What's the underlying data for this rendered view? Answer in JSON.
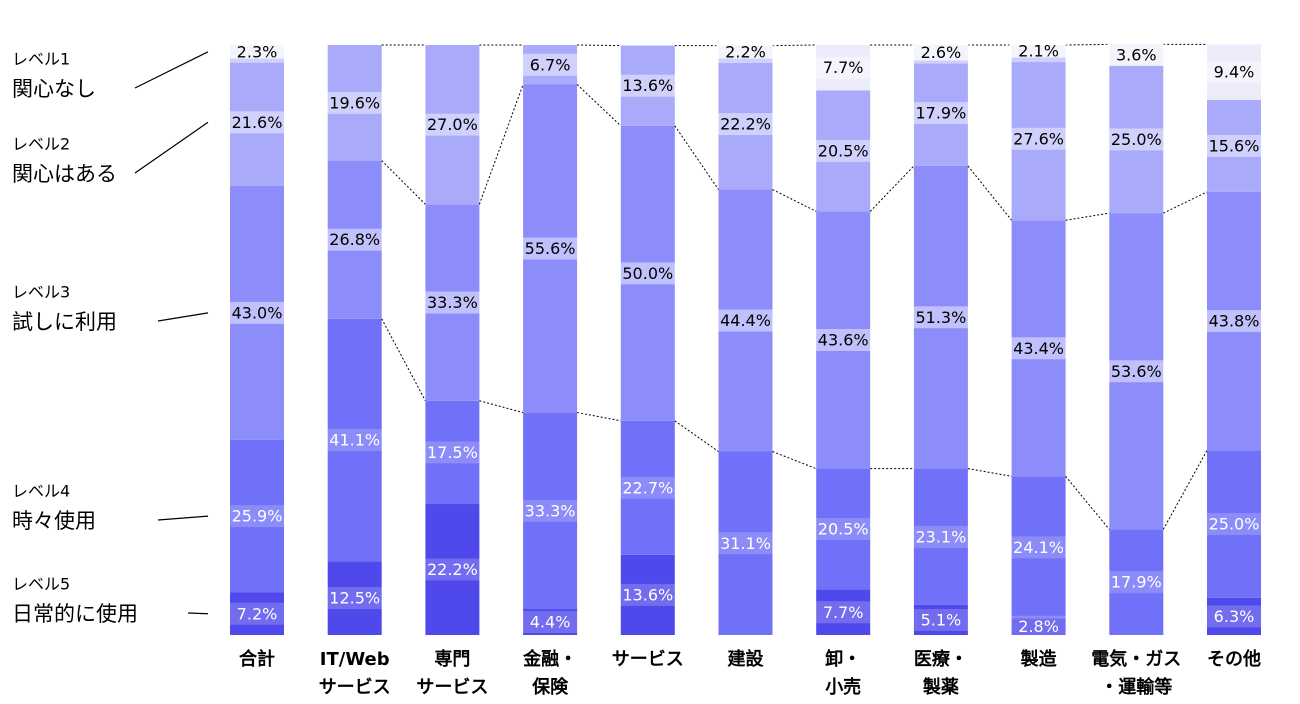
{
  "chart_data": {
    "type": "stacked_bar",
    "categories": [
      [
        "合計"
      ],
      [
        "IT/Web",
        "サービス"
      ],
      [
        "専門",
        "サービス"
      ],
      [
        "金融・",
        "保険"
      ],
      [
        "サービス"
      ],
      [
        "建設"
      ],
      [
        "卸・",
        "小売"
      ],
      [
        "医療・",
        "製薬"
      ],
      [
        "製造"
      ],
      [
        "電気・ガス",
        "・運輸等"
      ],
      [
        "その他"
      ]
    ],
    "ylim": [
      0,
      100
    ],
    "series": [
      {
        "name": "レベル1",
        "label": "関心なし",
        "color": "#ebebfa",
        "text_color": "#000000",
        "values": [
          2.3,
          null,
          null,
          null,
          null,
          2.2,
          7.7,
          2.6,
          2.1,
          3.6,
          9.4
        ],
        "value_labels": [
          "2.3%",
          null,
          null,
          null,
          null,
          "2.2%",
          "7.7%",
          "2.6%",
          "2.1%",
          "3.6%",
          "9.4%"
        ]
      },
      {
        "name": "レベル2",
        "label": "関心はある",
        "color": "#aaaafa",
        "text_color": "#000000",
        "values": [
          21.6,
          19.6,
          27.0,
          6.7,
          13.6,
          22.2,
          20.5,
          17.9,
          27.6,
          25.0,
          15.6
        ],
        "value_labels": [
          "21.6%",
          "19.6%",
          "27.0%",
          "6.7%",
          "13.6%",
          "22.2%",
          "20.5%",
          "17.9%",
          "27.6%",
          "25.0%",
          "15.6%"
        ]
      },
      {
        "name": "レベル3",
        "label": "試しに利用",
        "color": "#8c8cfa",
        "text_color": "#000000",
        "values": [
          43.0,
          26.8,
          33.3,
          55.6,
          50.0,
          44.4,
          43.6,
          51.3,
          43.4,
          53.6,
          43.8
        ],
        "value_labels": [
          "43.0%",
          "26.8%",
          "33.3%",
          "55.6%",
          "50.0%",
          "44.4%",
          "43.6%",
          "51.3%",
          "43.4%",
          "53.6%",
          "43.8%"
        ]
      },
      {
        "name": "レベル4",
        "label": "時々使用",
        "color": "#7070f8",
        "text_color": "#ffffff",
        "values": [
          25.9,
          41.1,
          17.5,
          33.3,
          22.7,
          31.1,
          20.5,
          23.1,
          24.1,
          17.9,
          25.0
        ],
        "value_labels": [
          "25.9%",
          "41.1%",
          "17.5%",
          "33.3%",
          "22.7%",
          "31.1%",
          "20.5%",
          "23.1%",
          "24.1%",
          "17.9%",
          "25.0%"
        ]
      },
      {
        "name": "レベル5",
        "label": "日常的に使用",
        "color": "#4f48ea",
        "text_color": "#ffffff",
        "values": [
          7.2,
          12.5,
          22.2,
          4.4,
          13.6,
          null,
          7.7,
          5.1,
          2.8,
          null,
          6.3
        ],
        "value_labels": [
          "7.2%",
          "12.5%",
          "22.2%",
          "4.4%",
          "13.6%",
          null,
          "7.7%",
          "5.1%",
          "2.8%",
          null,
          "6.3%"
        ]
      }
    ]
  }
}
